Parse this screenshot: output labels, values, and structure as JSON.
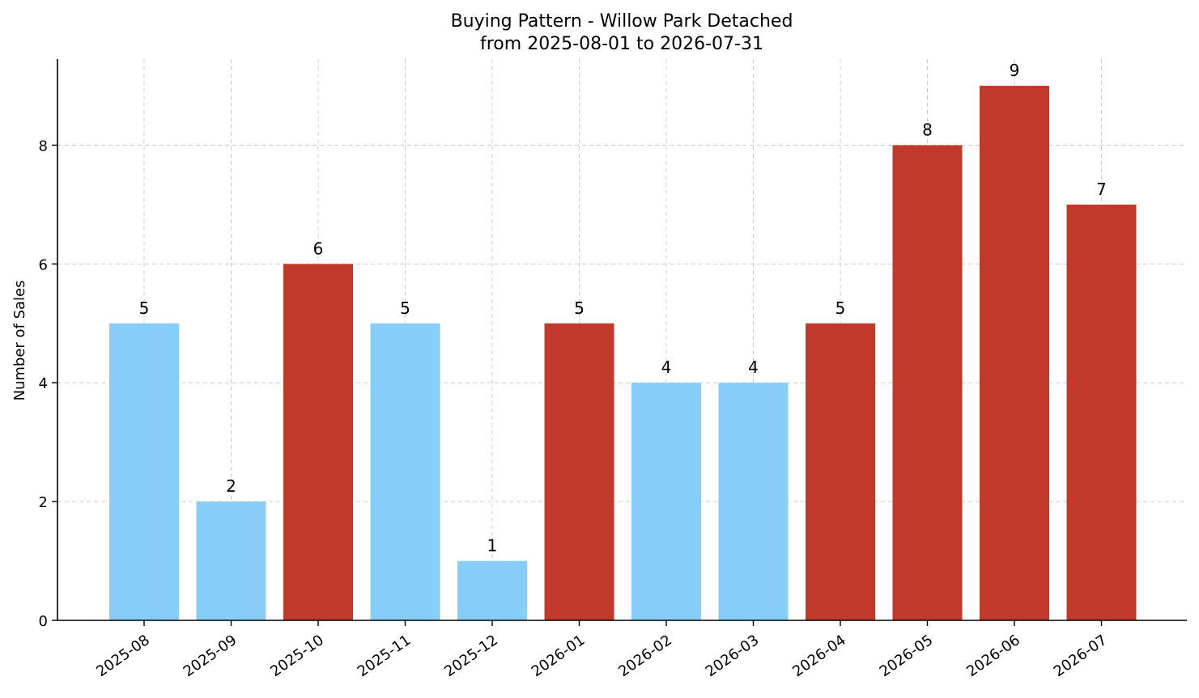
{
  "chart_data": {
    "type": "bar",
    "title": "Buying Pattern - Willow Park Detached",
    "subtitle": "from 2025-08-01 to 2026-07-31",
    "xlabel": "",
    "ylabel": "Number of Sales",
    "categories": [
      "2025-08",
      "2025-09",
      "2025-10",
      "2025-11",
      "2025-12",
      "2026-01",
      "2026-02",
      "2026-03",
      "2026-04",
      "2026-05",
      "2026-06",
      "2026-07"
    ],
    "values": [
      5,
      2,
      6,
      5,
      1,
      5,
      4,
      4,
      5,
      8,
      9,
      7
    ],
    "bar_colors": [
      "#87cdf9",
      "#87cdf9",
      "#c0392b",
      "#87cdf9",
      "#87cdf9",
      "#c0392b",
      "#87cdf9",
      "#87cdf9",
      "#c0392b",
      "#c0392b",
      "#c0392b",
      "#c0392b"
    ],
    "yticks": [
      0,
      2,
      4,
      6,
      8
    ],
    "ylim": [
      0,
      9.45
    ],
    "grid": true,
    "data_labels": true
  }
}
